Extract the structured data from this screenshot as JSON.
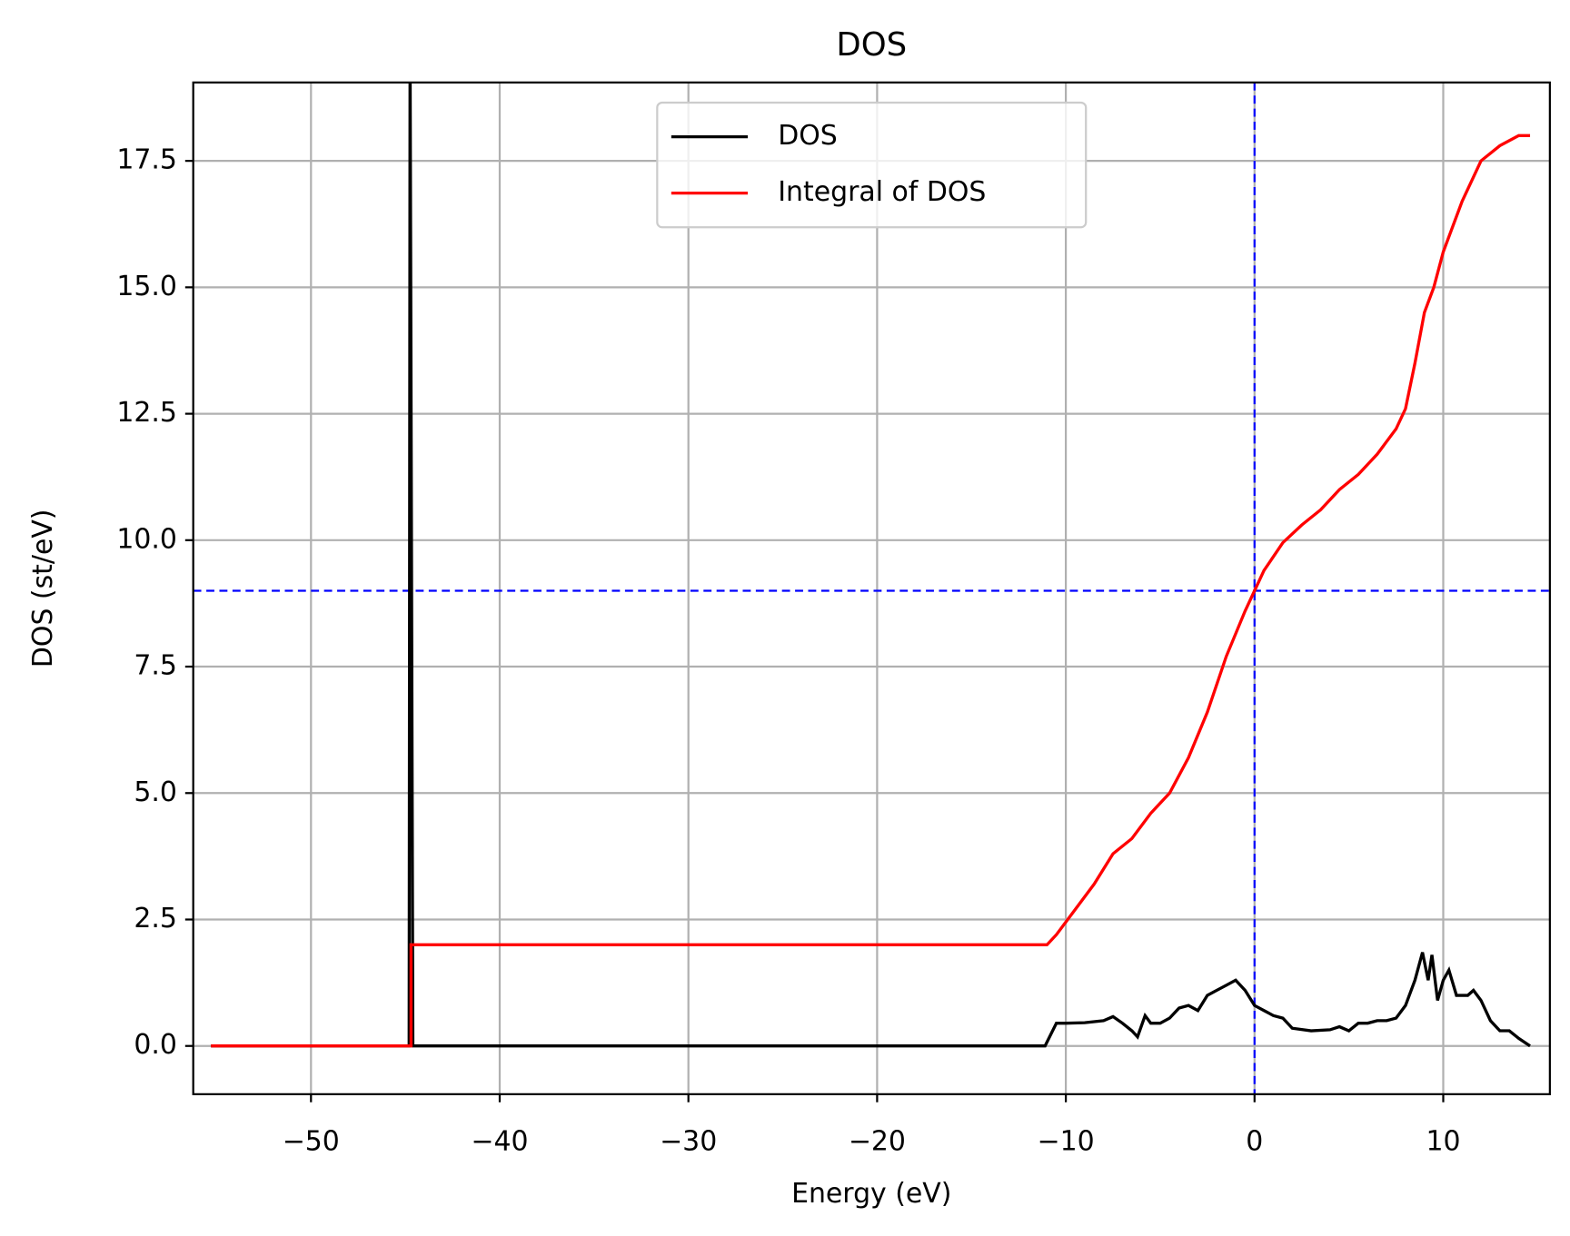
{
  "chart_data": {
    "type": "line",
    "title": "DOS",
    "xlabel": "Energy (eV)",
    "ylabel": "DOS (st/eV)",
    "series": [
      {
        "name": "DOS",
        "color": "#000000",
        "x": [
          -55.3,
          -44.8,
          -44.75,
          -44.6,
          -11.1,
          -10.5,
          -10,
          -9,
          -8,
          -7.5,
          -7,
          -6.5,
          -6.2,
          -5.8,
          -5.5,
          -5,
          -4.5,
          -4,
          -3.5,
          -3,
          -2.5,
          -2,
          -1.5,
          -1,
          -0.5,
          0,
          0.5,
          1,
          1.5,
          2,
          3,
          4,
          4.5,
          5,
          5.5,
          6,
          6.5,
          7,
          7.5,
          8,
          8.5,
          8.9,
          9.2,
          9.4,
          9.7,
          10,
          10.3,
          10.7,
          11.3,
          11.6,
          12,
          12.5,
          13,
          13.5,
          14,
          14.6
        ],
        "values": [
          0,
          0,
          20,
          0,
          0,
          0.45,
          0.45,
          0.46,
          0.5,
          0.58,
          0.45,
          0.3,
          0.18,
          0.6,
          0.45,
          0.45,
          0.55,
          0.75,
          0.8,
          0.7,
          1.0,
          1.1,
          1.2,
          1.3,
          1.1,
          0.8,
          0.7,
          0.6,
          0.55,
          0.35,
          0.3,
          0.32,
          0.38,
          0.3,
          0.45,
          0.45,
          0.5,
          0.5,
          0.55,
          0.8,
          1.3,
          1.85,
          1.3,
          1.8,
          0.9,
          1.3,
          1.5,
          1.0,
          1.0,
          1.1,
          0.9,
          0.5,
          0.3,
          0.3,
          0.15,
          0.0
        ]
      },
      {
        "name": "Integral of DOS",
        "color": "#ff0000",
        "x": [
          -55.3,
          -44.7,
          -44.7,
          -11,
          -10.5,
          -9.5,
          -8.5,
          -7.5,
          -6.5,
          -5.5,
          -4.5,
          -3.5,
          -2.5,
          -1.5,
          -0.5,
          0,
          0.5,
          1.5,
          2.5,
          3.5,
          4.5,
          5.5,
          6.5,
          7.5,
          8,
          8.5,
          9,
          9.5,
          10,
          11,
          12,
          13,
          14,
          14.6
        ],
        "values": [
          0,
          0,
          2,
          2,
          2.2,
          2.7,
          3.2,
          3.8,
          4.1,
          4.6,
          5.0,
          5.7,
          6.6,
          7.7,
          8.6,
          9.0,
          9.4,
          9.95,
          10.3,
          10.6,
          11.0,
          11.3,
          11.7,
          12.2,
          12.6,
          13.5,
          14.5,
          15.0,
          15.7,
          16.7,
          17.5,
          17.8,
          18.0,
          18.0
        ]
      }
    ],
    "reference_lines": {
      "x": 0,
      "y": 9,
      "color": "#0000ff"
    },
    "xlim": [
      -56.24,
      15.65
    ],
    "ylim": [
      -0.954,
      19.05
    ],
    "xticks": [
      {
        "value": -50,
        "label": "−50"
      },
      {
        "value": -40,
        "label": "−40"
      },
      {
        "value": -30,
        "label": "−30"
      },
      {
        "value": -20,
        "label": "−20"
      },
      {
        "value": -10,
        "label": "−10"
      },
      0,
      10
    ],
    "yticks": [
      {
        "value": 0,
        "label": "0.0"
      },
      2.5,
      {
        "value": 5,
        "label": "5.0"
      },
      7.5,
      {
        "value": 10,
        "label": "10.0"
      },
      12.5,
      {
        "value": 15,
        "label": "15.0"
      },
      17.5
    ],
    "grid": true,
    "legend": "upper center"
  }
}
